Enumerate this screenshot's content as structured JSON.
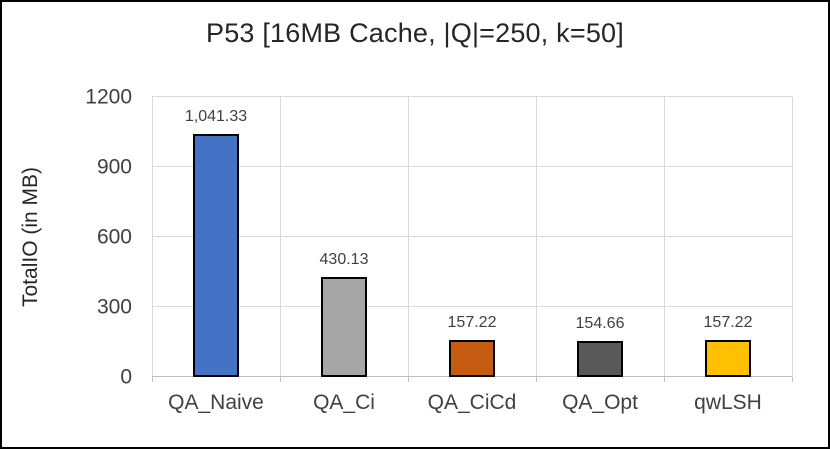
{
  "chart_data": {
    "type": "bar",
    "title": "P53 [16MB Cache, |Q|=250, k=50]",
    "ylabel": "TotalIO (in MB)",
    "xlabel": "",
    "categories": [
      "QA_Naive",
      "QA_Ci",
      "QA_CiCd",
      "QA_Opt",
      "qwLSH"
    ],
    "values": [
      1041.33,
      430.13,
      157.22,
      154.66,
      157.22
    ],
    "value_labels": [
      "1,041.33",
      "430.13",
      "157.22",
      "154.66",
      "157.22"
    ],
    "bar_colors": [
      "#4472C4",
      "#A6A6A6",
      "#C55A11",
      "#595959",
      "#FFC000"
    ],
    "bar_border_color": "#000000",
    "ylim": [
      0,
      1200
    ],
    "yticks": [
      0,
      300,
      600,
      900,
      1200
    ],
    "grid": true,
    "legend": "none",
    "plot_border_color": "#d9d9d9"
  }
}
